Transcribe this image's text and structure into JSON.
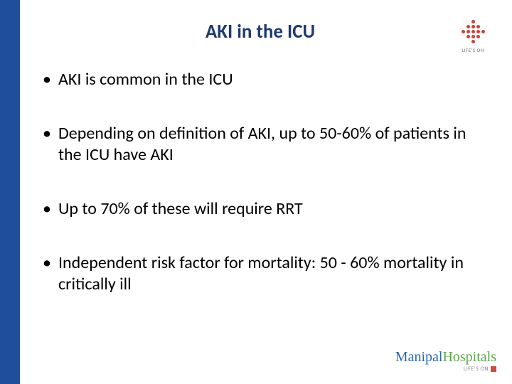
{
  "colors": {
    "sidebar": "#1f4e9c",
    "title": "#1f3a6e",
    "body_text": "#000000",
    "logo_bg": "#ffffff",
    "logo_dot": "#c8443a",
    "logo_text": "#6b6b6b",
    "footer_text1": "#2a6aa8",
    "footer_text2": "#5fa54a",
    "footer_sub": "#888888",
    "footer_square": "#d04a3e"
  },
  "typography": {
    "title_size": 27,
    "body_size": 24,
    "footer_main_size": 20,
    "footer_sub_size": 8
  },
  "layout": {
    "bullet_gap": 46
  },
  "title": "AKI in the ICU",
  "bullets": [
    "AKI is common in the ICU",
    "Depending on definition of AKI, up to 50-60% of patients in the ICU have AKI",
    "Up to 70% of these will require RRT",
    "Independent risk factor for mortality: 50 - 60% mortality in critically ill"
  ],
  "logo": {
    "label": "LIFE'S ON",
    "dot_pattern": [
      0,
      0,
      1,
      0,
      0,
      0,
      1,
      1,
      1,
      0,
      1,
      1,
      1,
      1,
      1,
      0,
      1,
      1,
      1,
      0,
      0,
      0,
      1,
      0,
      0
    ]
  },
  "footer": {
    "word1": "Manipal",
    "word2": "Hospitals",
    "sub": "LIFE'S ON"
  }
}
